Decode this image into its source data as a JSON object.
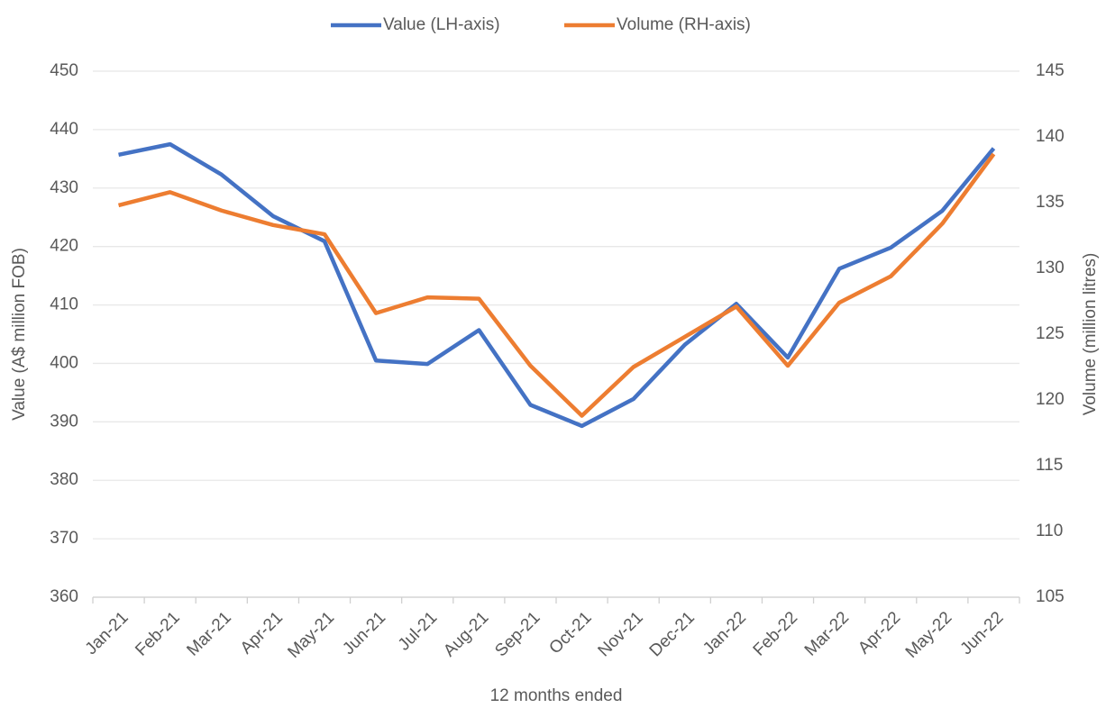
{
  "chart_data": {
    "type": "line",
    "categories": [
      "Jan-21",
      "Feb-21",
      "Mar-21",
      "Apr-21",
      "May-21",
      "Jun-21",
      "Jul-21",
      "Aug-21",
      "Sep-21",
      "Oct-21",
      "Nov-21",
      "Dec-21",
      "Jan-22",
      "Feb-22",
      "Mar-22",
      "Apr-22",
      "May-22",
      "Jun-22"
    ],
    "x_label": "12 months ended",
    "y_label": "Value (A$ million FOB)",
    "y2_label": "Volume (million litres)",
    "ylim": [
      360,
      450
    ],
    "yticks": [
      360,
      370,
      380,
      390,
      400,
      410,
      420,
      430,
      440,
      450
    ],
    "y2lim": [
      105,
      145
    ],
    "y2ticks": [
      105,
      110,
      115,
      120,
      125,
      130,
      135,
      140,
      145
    ],
    "grid": true,
    "legend": "top",
    "series": [
      {
        "name": "Value (LH-axis)",
        "color": "#4472c4",
        "axis": "y",
        "values": [
          435.7,
          437.5,
          432.3,
          425.2,
          420.9,
          400.5,
          399.9,
          405.7,
          392.9,
          389.3,
          393.9,
          403.2,
          410.2,
          401.0,
          416.2,
          419.8,
          426.1,
          436.8
        ]
      },
      {
        "name": "Volume (RH-axis)",
        "color": "#ed7d31",
        "axis": "y2",
        "values": [
          134.8,
          135.8,
          134.4,
          133.3,
          132.6,
          126.6,
          127.8,
          127.7,
          122.6,
          118.8,
          122.5,
          124.8,
          127.1,
          122.6,
          127.4,
          129.4,
          133.4,
          138.7
        ]
      }
    ]
  }
}
